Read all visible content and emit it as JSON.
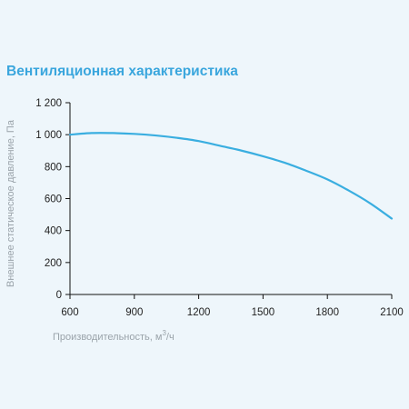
{
  "chart_data": {
    "type": "line",
    "title": "Вентиляционная характеристика",
    "xlabel_main": "Производительность, м",
    "xlabel_sup": "3",
    "xlabel_tail": "/ч",
    "ylabel": "Внешнее статическое давление, Па",
    "xlim": [
      600,
      2100
    ],
    "ylim": [
      0,
      1200
    ],
    "x_ticks": [
      600,
      900,
      1200,
      1500,
      1800,
      2100
    ],
    "x_tick_labels": [
      "600",
      "900",
      "1200",
      "1500",
      "1800",
      "2100"
    ],
    "y_ticks": [
      0,
      200,
      400,
      600,
      800,
      1000,
      1200
    ],
    "y_tick_labels": [
      "0",
      "200",
      "400",
      "600",
      "800",
      "1 000",
      "1 200"
    ],
    "grid": false,
    "series": [
      {
        "color": "#3aaee0",
        "x": [
          600,
          700,
          800,
          900,
          1000,
          1100,
          1200,
          1300,
          1400,
          1500,
          1600,
          1700,
          1800,
          1900,
          2000,
          2100
        ],
        "y": [
          1000,
          1010,
          1010,
          1005,
          995,
          980,
          960,
          930,
          900,
          865,
          825,
          775,
          720,
          650,
          570,
          475
        ]
      }
    ],
    "colors": {
      "axis": "#111111",
      "title": "#3aa6dd",
      "axis_title": "#9aa3aa"
    }
  }
}
